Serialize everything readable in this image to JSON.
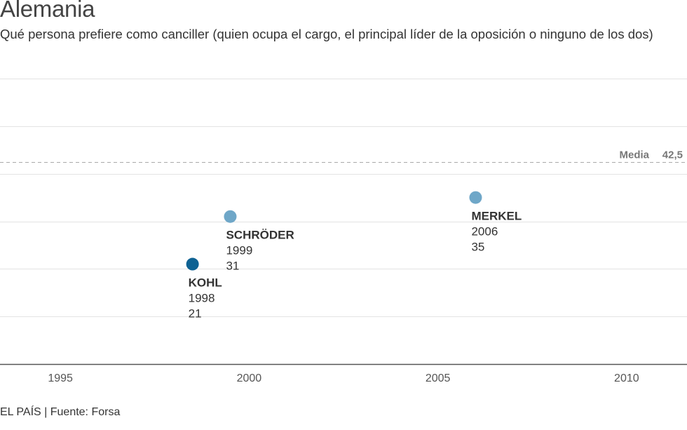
{
  "header": {
    "title": "Alemania",
    "subtitle": "Qué persona prefiere como canciller (quien ocupa el cargo, el principal líder de la oposición o ninguno de los dos)"
  },
  "footer": {
    "source": "EL PAÍS | Fuente: Forsa"
  },
  "chart_data": {
    "type": "scatter",
    "title": "Alemania",
    "xlim": [
      1993.4,
      2011.6
    ],
    "ylim": [
      0,
      60
    ],
    "x_ticks": [
      1995,
      2000,
      2005,
      2010
    ],
    "y_grid": [
      10,
      20,
      30,
      40,
      50
    ],
    "grid": true,
    "reference_line": {
      "label": "Media",
      "value": 42.5,
      "value_label": "42,5"
    },
    "points": [
      {
        "name": "KOHL",
        "year": 1998,
        "year_label": "1998",
        "value": 21,
        "value_label": "21",
        "x": 1998.5,
        "color": "#0e6293"
      },
      {
        "name": "SCHRÖDER",
        "year": 1999,
        "year_label": "1999",
        "value": 31,
        "value_label": "31",
        "x": 1999.5,
        "color": "#6fa7c8"
      },
      {
        "name": "MERKEL",
        "year": 2006,
        "year_label": "2006",
        "value": 35,
        "value_label": "35",
        "x": 2006,
        "color": "#6fa7c8"
      }
    ]
  }
}
